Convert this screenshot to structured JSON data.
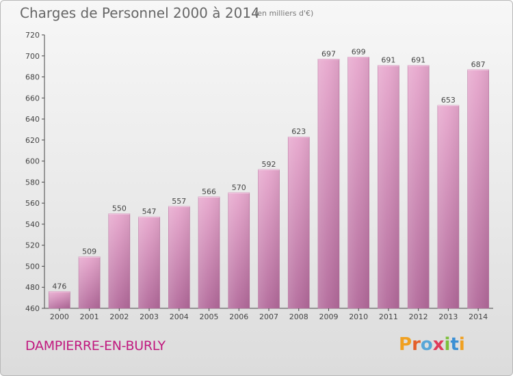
{
  "header": {
    "title": "Charges de Personnel 2000 à 2014",
    "subtitle": "(en milliers d'€)"
  },
  "footer": {
    "place": "DAMPIERRE-EN-BURLY",
    "logo": "Proxiti"
  },
  "chart_data": {
    "type": "bar",
    "title": "Charges de Personnel 2000 à 2014",
    "subtitle": "(en milliers d'€)",
    "categories": [
      "2000",
      "2001",
      "2002",
      "2003",
      "2004",
      "2005",
      "2006",
      "2007",
      "2008",
      "2009",
      "2010",
      "2011",
      "2012",
      "2013",
      "2014"
    ],
    "values": [
      476,
      509,
      550,
      547,
      557,
      566,
      570,
      592,
      623,
      697,
      699,
      691,
      691,
      653,
      687
    ],
    "ylim": [
      460,
      720
    ],
    "yticks": [
      460,
      480,
      500,
      520,
      540,
      560,
      580,
      600,
      620,
      640,
      660,
      680,
      700,
      720
    ],
    "grid": false,
    "bar_color": "#d68cb8"
  }
}
